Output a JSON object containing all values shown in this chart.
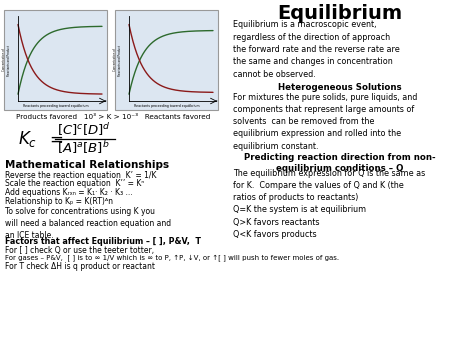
{
  "title": "Equilibrium",
  "title_fontsize": 14,
  "bg_color": "#ffffff",
  "left_panel_bg": "#dce6f1",
  "intro_text": "Equilibrium is a macroscopic event,\nregardless of the direction of approach\nthe forward rate and the reverse rate are\nthe same and changes in concentration\ncannot be observed.",
  "hetero_title": "Heterogeneous Solutions",
  "hetero_text": "For mixtures the pure solids, pure liquids, and\ncomponents that represent large amounts of\nsolvents  can be removed from the\nequilibrium expression and rolled into the\nequilibrium constant.",
  "predict_title": "Predicting reaction direction from non-\nequilibrium conditions – Q",
  "predict_text": "The equilibrium expression for Q is the same as\nfor K.  Compare the values of Q and K (the\nratios of products to reactants)\nQ=K the system is at equilibrium\nQ>K favors reactants\nQ<K favors products",
  "math_rel_title": "Mathematical Relationships",
  "math_rel_lines": [
    "Reverse the reaction equation  K’ = 1/K",
    "Scale the reaction equation  K’’ = Kⁿ",
    "Add equations Kᵣₓₙ = K₁· K₂ · K₃ ...",
    "Relationship to Kₚ = K(RT)ᴬn"
  ],
  "solve_text": "To solve for concentrations using K you\nwill need a balanced reaction equation and\nan ICE table.",
  "factors_title": "Factors that affect Equilibrium – [ ], P&V,  T",
  "factors_line1": "For [ ] check Q or use the teeter totter,",
  "factors_line2": "For gases – P&V,  [ ] is to ∞ 1/V which is ∞ to P, ↑P, ↓V, or ↑[ ] will push to fewer moles of gas.",
  "factors_line3": "For T check ΔH is q product or reactant",
  "products_label": "Products favored   10³ > K > 10⁻³   Reactants favored",
  "graph_bg": "#dce6f1",
  "green_color": "#2d6a2d",
  "red_color": "#8b1a1a"
}
